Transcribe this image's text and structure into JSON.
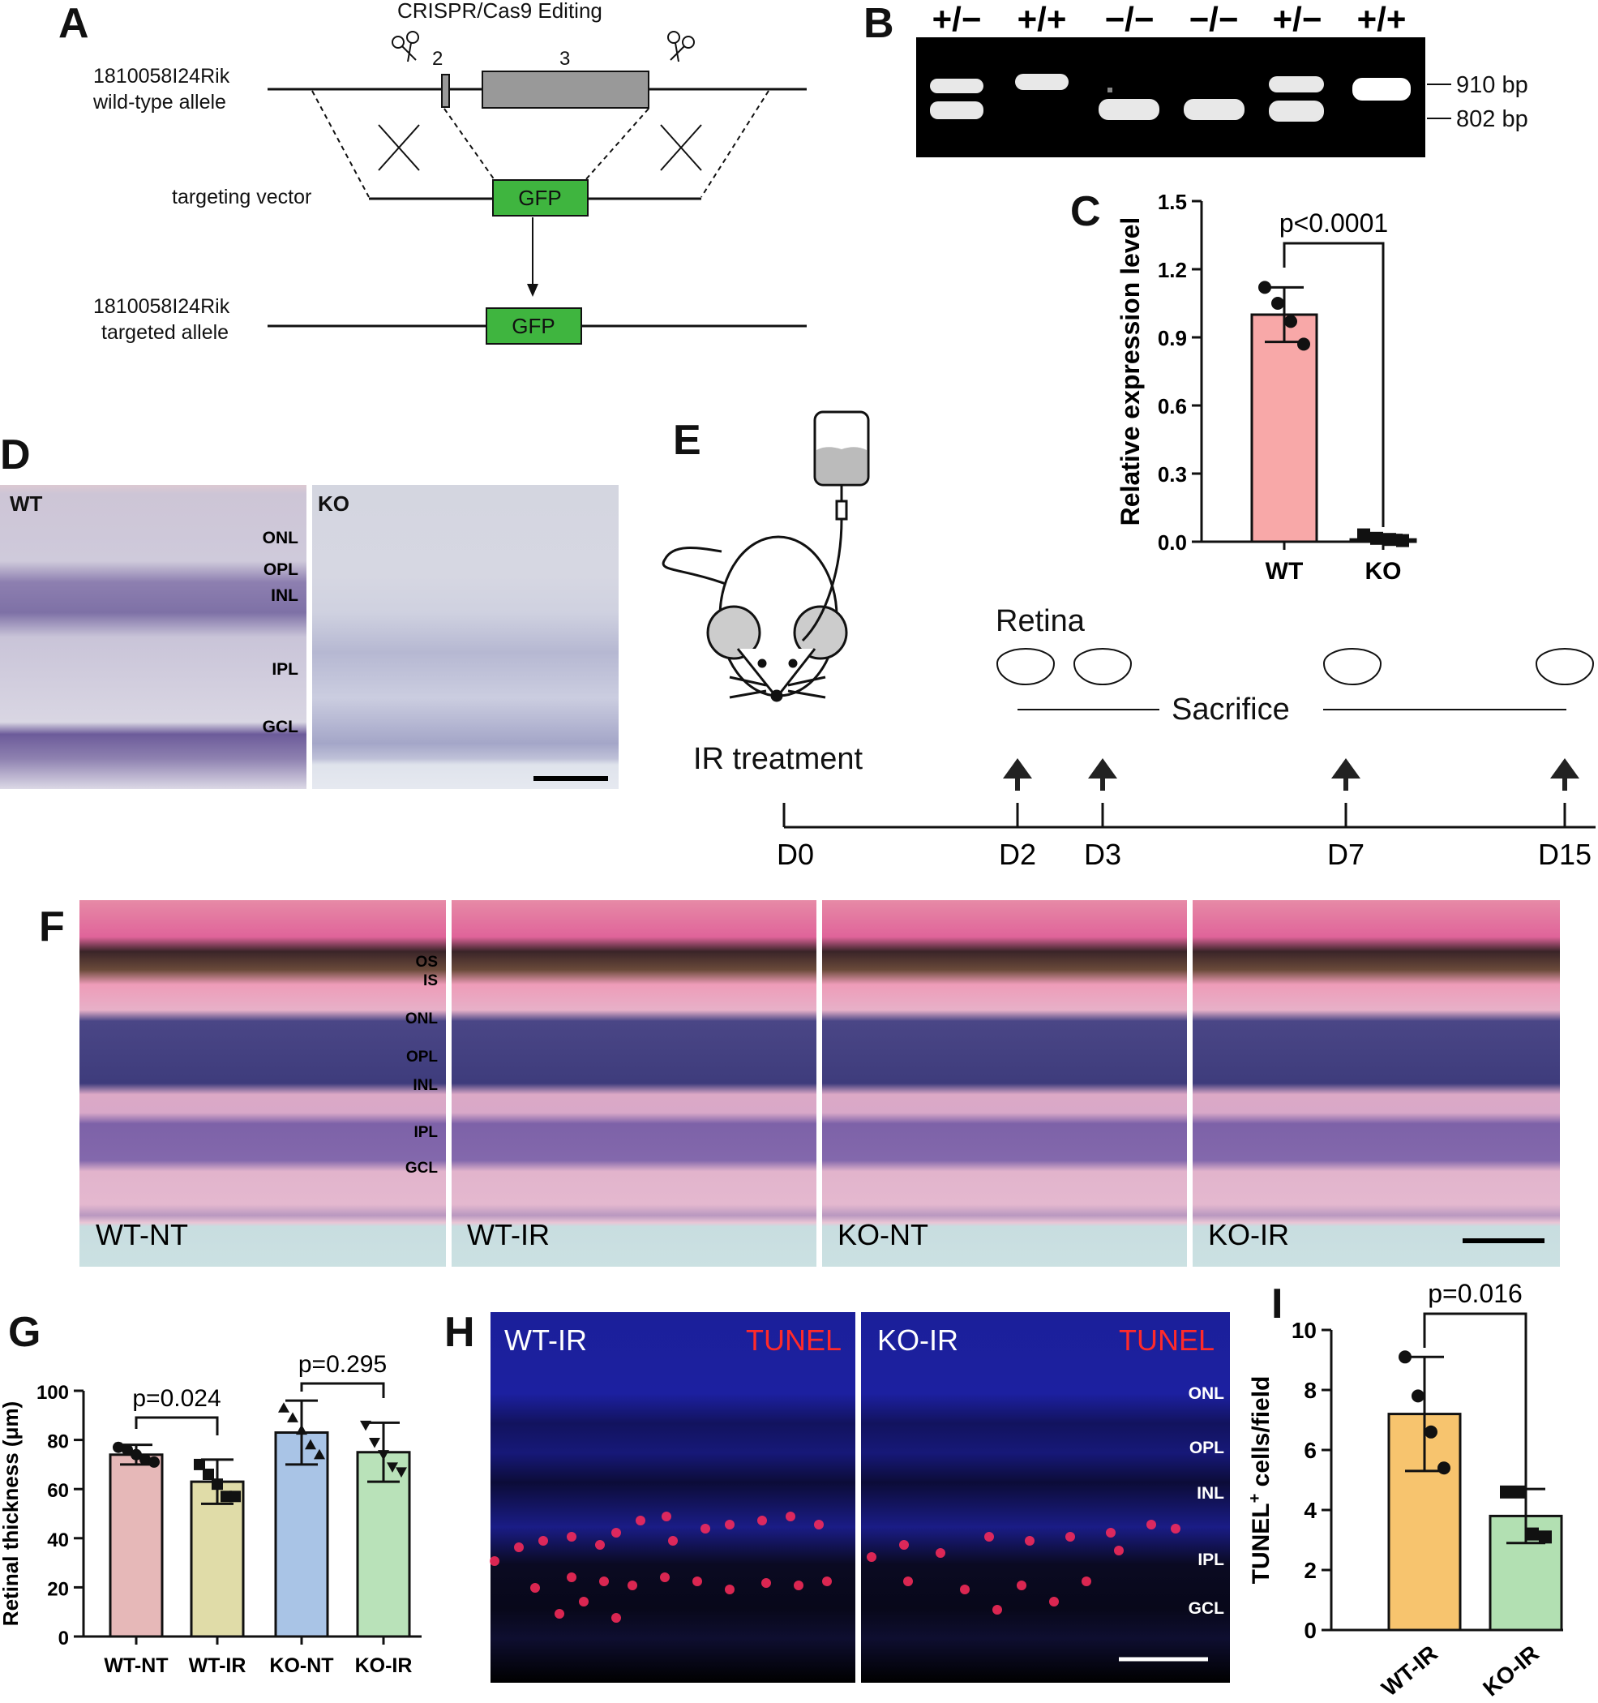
{
  "panels": {
    "A": "A",
    "B": "B",
    "C": "C",
    "D": "D",
    "E": "E",
    "F": "F",
    "G": "G",
    "H": "H",
    "I": "I"
  },
  "panelA": {
    "title": "CRISPR/Cas9 Editing",
    "exon2": "2",
    "exon3": "3",
    "wt_line1": "1810058I24Rik",
    "wt_line2": "wild-type allele",
    "vector": "targeting vector",
    "gfp": "GFP",
    "tg_line1": "1810058I24Rik",
    "tg_line2": "targeted allele",
    "colors": {
      "gfp": "#3fb53f",
      "exon": "#999999"
    }
  },
  "panelB": {
    "genotypes": [
      "+/−",
      "+/+",
      "−/−",
      "−/−",
      "+/−",
      "+/+"
    ],
    "bands": [
      "910 bp",
      "802 bp"
    ]
  },
  "panelC": {
    "chart_data": {
      "type": "bar",
      "categories": [
        "WT",
        "KO"
      ],
      "values": [
        1.0,
        0.01
      ],
      "errors": [
        0.12,
        0.02
      ],
      "points": [
        [
          1.12,
          1.05,
          0.97,
          0.87
        ],
        [
          0.03,
          0.015,
          0.01,
          0.005
        ]
      ],
      "ylabel": "Relative expression level",
      "ylim": [
        0,
        1.5
      ],
      "yticks": [
        "0.0",
        "0.3",
        "0.6",
        "0.9",
        "1.2",
        "1.5"
      ],
      "annotation": "p<0.0001",
      "colors": [
        "#f8a8a8",
        "#cfe9cf"
      ]
    }
  },
  "panelD": {
    "left": "WT",
    "right": "KO",
    "layers": [
      "ONL",
      "OPL",
      "INL",
      "IPL",
      "GCL"
    ]
  },
  "panelE": {
    "retina": "Retina",
    "sacrifice": "Sacrifice",
    "ir": "IR treatment",
    "days": [
      "D0",
      "D2",
      "D3",
      "D7",
      "D15"
    ]
  },
  "panelF": {
    "labels": [
      "WT-NT",
      "WT-IR",
      "KO-NT",
      "KO-IR"
    ],
    "layers": [
      "OS",
      "IS",
      "ONL",
      "OPL",
      "INL",
      "IPL",
      "GCL"
    ]
  },
  "panelG": {
    "chart_data": {
      "type": "bar",
      "categories": [
        "WT-NT",
        "WT-IR",
        "KO-NT",
        "KO-IR"
      ],
      "values": [
        74,
        63,
        83,
        75
      ],
      "errors": [
        4,
        9,
        13,
        12
      ],
      "points": [
        [
          77,
          76,
          74,
          72,
          71
        ],
        [
          70,
          66,
          62,
          57,
          57
        ],
        [
          93,
          89,
          84,
          78,
          74
        ],
        [
          86,
          79,
          74,
          69,
          67
        ]
      ],
      "ylabel": "Retinal thickness (μm)",
      "ylim": [
        0,
        100
      ],
      "yticks": [
        "0",
        "20",
        "40",
        "60",
        "80",
        "100"
      ],
      "annotations": [
        "p=0.024",
        "p=0.295"
      ],
      "colors": [
        "#e6b8b8",
        "#e0dca8",
        "#a9c4e6",
        "#b9e2b9"
      ]
    }
  },
  "panelH": {
    "left": "WT-IR",
    "right": "KO-IR",
    "stain": "TUNEL",
    "layers": [
      "ONL",
      "OPL",
      "INL",
      "IPL",
      "GCL"
    ]
  },
  "panelI": {
    "chart_data": {
      "type": "bar",
      "categories": [
        "WT-IR",
        "KO-IR"
      ],
      "values": [
        7.2,
        3.8
      ],
      "errors": [
        1.9,
        0.9
      ],
      "points": [
        [
          9.1,
          7.8,
          6.6,
          5.4
        ],
        [
          4.6,
          4.6,
          3.2,
          3.1
        ]
      ],
      "ylabel_main": "TUNEL",
      "ylabel_sup": "+",
      "ylabel_rest": " cells/field",
      "ylim": [
        0,
        10
      ],
      "yticks": [
        "0",
        "2",
        "4",
        "6",
        "8",
        "10"
      ],
      "annotation": "p=0.016",
      "colors": [
        "#f7c46e",
        "#b2e0b2"
      ]
    }
  }
}
